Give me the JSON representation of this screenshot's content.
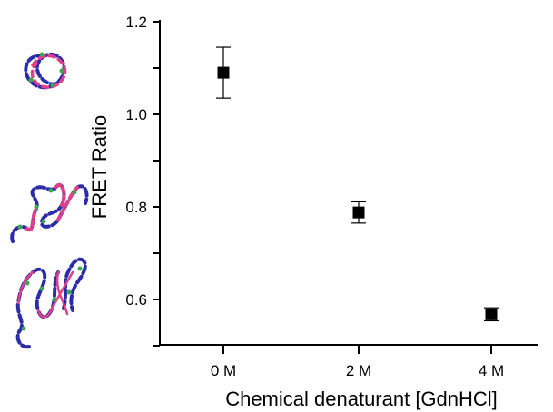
{
  "chart_data": {
    "type": "scatter",
    "title": "",
    "xlabel": "Chemical denaturant [GdnHCl]",
    "ylabel": "FRET Ratio",
    "categories": [
      "0 M",
      "2 M",
      "4 M"
    ],
    "ylim": [
      0.5,
      1.2
    ],
    "yticks": [
      "0.6",
      "0.8",
      "1.0",
      "1.2"
    ],
    "ytick_values": [
      0.6,
      0.8,
      1.0,
      1.2
    ],
    "grid": false,
    "legend": "none",
    "marker": "square",
    "series": [
      {
        "values": [
          1.09,
          0.788,
          0.568
        ],
        "error": [
          0.055,
          0.023,
          0.014
        ]
      }
    ],
    "colors": {
      "marker": "#000000",
      "protein_blue": "#2c2ca8",
      "protein_pink": "#e0408a",
      "protein_green": "#3aa84a"
    },
    "illustrations": [
      "folded-protein-icon",
      "partially-unfolded-protein-icon",
      "unfolded-protein-icon"
    ]
  }
}
